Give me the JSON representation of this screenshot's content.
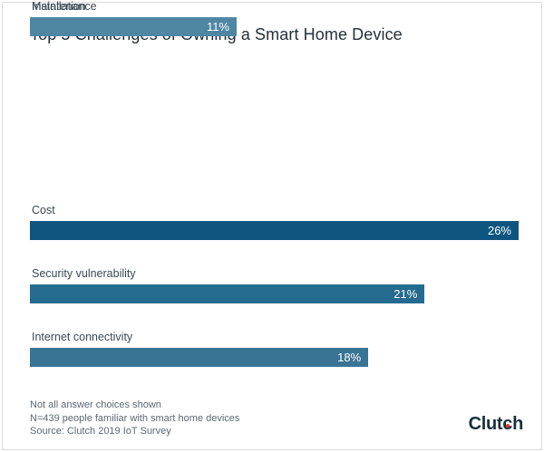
{
  "title": "Top 5 Challenges of Owning a Smart Home Device",
  "chart_data": {
    "type": "bar",
    "orientation": "horizontal",
    "title": "Top 5 Challenges of Owning a Smart Home Device",
    "categories": [
      "Cost",
      "Security vulnerability",
      "Internet connectivity",
      "Installation",
      "Maintenance"
    ],
    "values": [
      26,
      21,
      18,
      11,
      11
    ],
    "value_labels": [
      "26%",
      "21%",
      "18%",
      "11%",
      "11%"
    ],
    "bar_colors": [
      "#0e5680",
      "#256a8f",
      "#397494",
      "#4c83a1",
      "#4f86a4"
    ],
    "xlabel": "",
    "ylabel": "",
    "xlim": [
      0,
      26
    ],
    "grid": false,
    "axes_shown": false,
    "value_label_position": "inside-end"
  },
  "footer": {
    "notes": [
      "Not all answer choices shown",
      "N=439 people familiar with smart home devices",
      "Source: Clutch 2019 IoT Survey"
    ],
    "logo": {
      "text": "Clutch",
      "part1": "Clut",
      "part2": "c",
      "part3": "h",
      "dot_color": "#e8351f",
      "text_color": "#17303c"
    }
  },
  "brand": {
    "navy": "#17303c",
    "red": "#e8351f"
  }
}
